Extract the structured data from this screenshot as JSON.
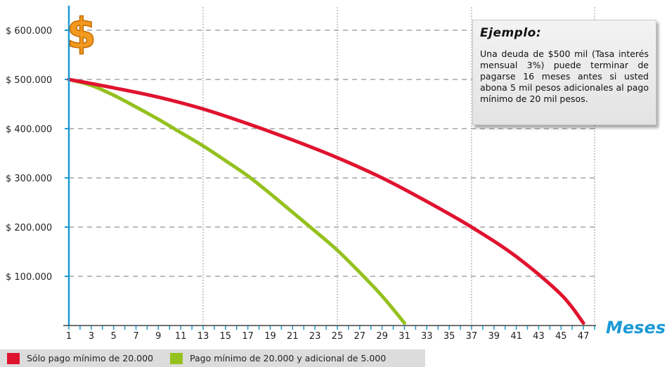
{
  "chart_data": {
    "type": "line",
    "xlabel": "Meses",
    "ylabel": "",
    "y_icon": "$",
    "xlim": [
      1,
      48
    ],
    "ylim": [
      0,
      650000
    ],
    "y_ticks": [
      100000,
      200000,
      300000,
      400000,
      500000,
      600000
    ],
    "y_tick_labels": [
      "$ 100.000",
      "$ 200.000",
      "$ 300.000",
      "$ 400.000",
      "$ 500.000",
      "$ 600.000"
    ],
    "x_ticks": [
      1,
      3,
      5,
      7,
      9,
      11,
      13,
      15,
      17,
      19,
      21,
      23,
      25,
      27,
      29,
      31,
      33,
      35,
      37,
      39,
      41,
      43,
      45,
      47
    ],
    "grid": {
      "horizontal": "dashed",
      "vertical": "dotted",
      "vertical_every": [
        13,
        25,
        37,
        48
      ]
    },
    "series": [
      {
        "name": "Sólo pago mínimo de 20.000",
        "color": "#e0132f",
        "x": [
          1,
          5,
          9,
          13,
          17,
          21,
          25,
          29,
          33,
          37,
          41,
          45,
          47
        ],
        "y": [
          500000,
          483000,
          464000,
          440000,
          410000,
          377000,
          341000,
          300000,
          252000,
          200000,
          140000,
          63000,
          5000
        ]
      },
      {
        "name": "Pago mínimo de 20.000 y adicional de 5.000",
        "color": "#95c11f",
        "x": [
          1,
          3,
          5,
          7,
          9,
          11,
          13,
          15,
          17,
          19,
          21,
          23,
          25,
          27,
          29,
          31
        ],
        "y": [
          500000,
          488000,
          468000,
          444000,
          419000,
          392000,
          365000,
          335000,
          304000,
          268000,
          230000,
          192000,
          153000,
          108000,
          60000,
          5000
        ]
      }
    ]
  },
  "callout": {
    "title": "Ejemplo:",
    "body": "Una deuda de $500 mil (Tasa interés mensual 3%) puede terminar de pagarse 16 meses antes si usted abona 5 mil pesos adicionales al pago mínimo de 20 mil pesos."
  },
  "legend": [
    {
      "label": "Sólo pago mínimo de 20.000",
      "color": "#e0132f"
    },
    {
      "label": "Pago mínimo de 20.000 y adicional de 5.000",
      "color": "#95c11f"
    }
  ]
}
